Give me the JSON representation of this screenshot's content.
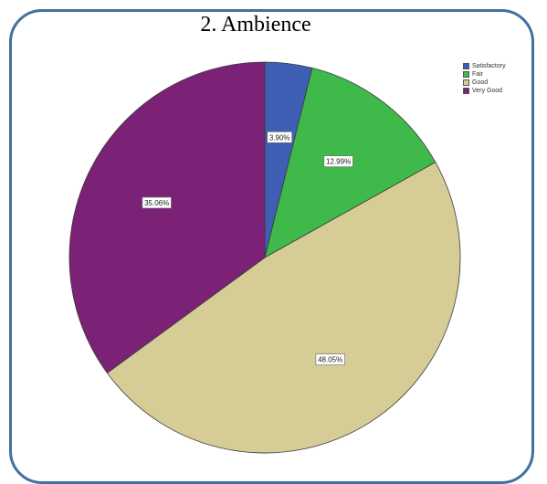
{
  "title": "2. Ambience",
  "colors": {
    "frame_border": "#41719c",
    "slice_outline": "#3a3a3a"
  },
  "chart_data": {
    "type": "pie",
    "title": "2. Ambience",
    "legend_position": "top-right",
    "slices": [
      {
        "label": "Satisfactory",
        "value": 3.9,
        "display": "3.90%",
        "color": "#3f5fb5"
      },
      {
        "label": "Fair",
        "value": 12.99,
        "display": "12.99%",
        "color": "#3fb94a"
      },
      {
        "label": "Good",
        "value": 48.05,
        "display": "48.05%",
        "color": "#d6cc96"
      },
      {
        "label": "Very Good",
        "value": 35.06,
        "display": "35.06%",
        "color": "#7b2277"
      }
    ]
  }
}
